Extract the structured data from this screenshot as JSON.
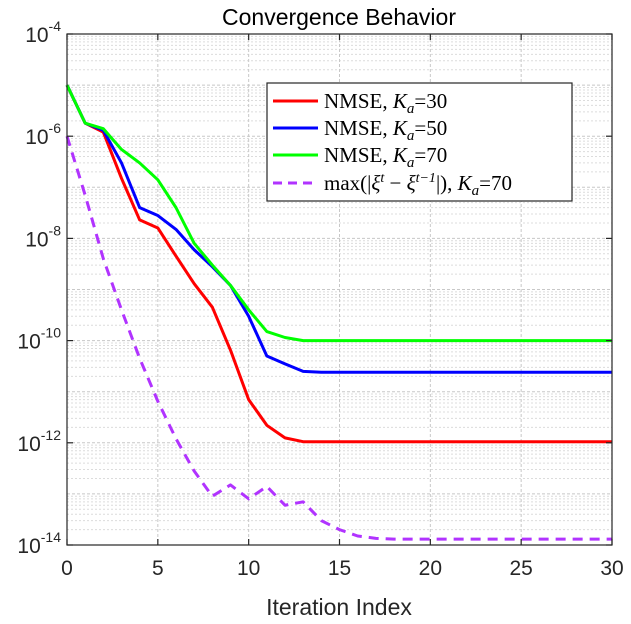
{
  "chart_data": {
    "type": "line",
    "title": "Convergence Behavior",
    "xlabel": "Iteration Index",
    "ylabel": "",
    "yscale": "log",
    "xlim": [
      0,
      30
    ],
    "ylim": [
      1e-14,
      0.0001
    ],
    "grid": true,
    "legend_position": "top-right",
    "x_ticks": [
      {
        "value": 0,
        "label": "0"
      },
      {
        "value": 5,
        "label": "5"
      },
      {
        "value": 10,
        "label": "10"
      },
      {
        "value": 15,
        "label": "15"
      },
      {
        "value": 20,
        "label": "20"
      },
      {
        "value": 25,
        "label": "25"
      },
      {
        "value": 30,
        "label": "30"
      }
    ],
    "y_ticks": [
      {
        "value": -4,
        "base": "10",
        "exp": "-4"
      },
      {
        "value": -6,
        "base": "10",
        "exp": "-6"
      },
      {
        "value": -8,
        "base": "10",
        "exp": "-8"
      },
      {
        "value": -10,
        "base": "10",
        "exp": "-10"
      },
      {
        "value": -12,
        "base": "10",
        "exp": "-12"
      },
      {
        "value": -14,
        "base": "10",
        "exp": "-14"
      }
    ],
    "x": [
      0,
      1,
      2,
      3,
      4,
      5,
      6,
      7,
      8,
      9,
      10,
      11,
      12,
      13,
      14,
      15,
      16,
      17,
      18,
      19,
      20,
      21,
      22,
      23,
      24,
      25,
      26,
      27,
      28,
      29,
      30
    ],
    "series": [
      {
        "name": "NMSE, K_a=30",
        "legend_parts": [
          "NMSE, ",
          "K",
          "a",
          "=30"
        ],
        "color": "#ff0000",
        "dash": "solid",
        "values": [
          1e-05,
          1.8e-06,
          1.2e-06,
          1.5e-07,
          2.3e-08,
          1.6e-08,
          4.5e-09,
          1.3e-09,
          4.5e-10,
          6.5e-11,
          7e-12,
          2.2e-12,
          1.25e-12,
          1.05e-12,
          1.05e-12,
          1.05e-12,
          1.05e-12,
          1.05e-12,
          1.05e-12,
          1.05e-12,
          1.05e-12,
          1.05e-12,
          1.05e-12,
          1.05e-12,
          1.05e-12,
          1.05e-12,
          1.05e-12,
          1.05e-12,
          1.05e-12,
          1.05e-12,
          1.05e-12
        ]
      },
      {
        "name": "NMSE, K_a=50",
        "legend_parts": [
          "NMSE, ",
          "K",
          "a",
          "=50"
        ],
        "color": "#0000ff",
        "dash": "solid",
        "values": [
          1e-05,
          1.8e-06,
          1.3e-06,
          3e-07,
          4e-08,
          2.8e-08,
          1.5e-08,
          6e-09,
          2.8e-09,
          1.2e-09,
          3e-10,
          5e-11,
          3.5e-11,
          2.5e-11,
          2.4e-11,
          2.4e-11,
          2.4e-11,
          2.4e-11,
          2.4e-11,
          2.4e-11,
          2.4e-11,
          2.4e-11,
          2.4e-11,
          2.4e-11,
          2.4e-11,
          2.4e-11,
          2.4e-11,
          2.4e-11,
          2.4e-11,
          2.4e-11,
          2.4e-11
        ]
      },
      {
        "name": "NMSE, K_a=70",
        "legend_parts": [
          "NMSE, ",
          "K",
          "a",
          "=70"
        ],
        "color": "#00ff00",
        "dash": "solid",
        "values": [
          1e-05,
          1.8e-06,
          1.4e-06,
          5.5e-07,
          3e-07,
          1.4e-07,
          4e-08,
          8e-09,
          3e-09,
          1.2e-09,
          4e-10,
          1.5e-10,
          1.15e-10,
          1e-10,
          1e-10,
          1e-10,
          1e-10,
          1e-10,
          1e-10,
          1e-10,
          1e-10,
          1e-10,
          1e-10,
          1e-10,
          1e-10,
          1e-10,
          1e-10,
          1e-10,
          1e-10,
          1e-10,
          1e-10
        ]
      },
      {
        "name": "max(|ξ^t − ξ^(t−1)|), K_a=70",
        "legend_parts": [
          "max(|",
          "ξ",
          "t",
          " − ",
          "ξ",
          "t−1",
          "|), ",
          "K",
          "a",
          "=70"
        ],
        "color": "#b133ff",
        "dash": "dashed",
        "values": [
          1e-06,
          7e-08,
          4e-09,
          4e-10,
          4.5e-11,
          6.5e-12,
          1.2e-12,
          2.8e-13,
          9e-14,
          1.5e-13,
          8e-14,
          1.4e-13,
          6e-14,
          7e-14,
          3e-14,
          2e-14,
          1.5e-14,
          1.35e-14,
          1.3e-14,
          1.3e-14,
          1.3e-14,
          1.3e-14,
          1.3e-14,
          1.3e-14,
          1.3e-14,
          1.3e-14,
          1.3e-14,
          1.3e-14,
          1.3e-14,
          1.3e-14,
          1.3e-14
        ]
      }
    ]
  }
}
